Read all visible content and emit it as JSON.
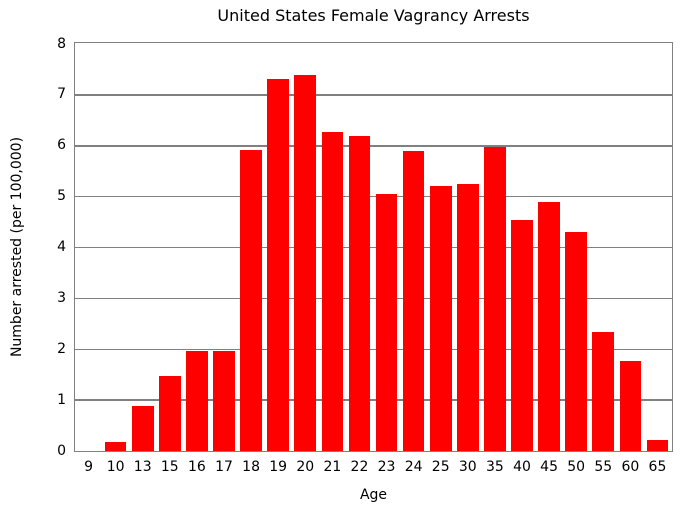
{
  "chart_data": {
    "type": "bar",
    "title": "United States Female Vagrancy Arrests",
    "xlabel": "Age",
    "ylabel": "Number arrested (per 100,000)",
    "categories": [
      "9",
      "10",
      "13",
      "15",
      "16",
      "17",
      "18",
      "19",
      "20",
      "21",
      "22",
      "23",
      "24",
      "25",
      "30",
      "35",
      "40",
      "45",
      "50",
      "55",
      "60",
      "65"
    ],
    "values": [
      0.0,
      0.17,
      0.88,
      1.47,
      1.96,
      1.96,
      5.92,
      7.32,
      7.4,
      6.28,
      6.19,
      5.05,
      5.9,
      5.2,
      5.25,
      5.98,
      4.55,
      4.9,
      4.31,
      2.33,
      1.76,
      0.21
    ],
    "ylim": [
      0,
      8
    ],
    "yticks": [
      0,
      1,
      2,
      3,
      4,
      5,
      6,
      7,
      8
    ],
    "bar_color": "#ff0000",
    "bar_width_fraction": 0.8,
    "grid": true,
    "gridline_color": "#808080",
    "spine_color": "#808080",
    "background_color": "#ffffff",
    "text_color": "#000000",
    "legend": "none"
  }
}
